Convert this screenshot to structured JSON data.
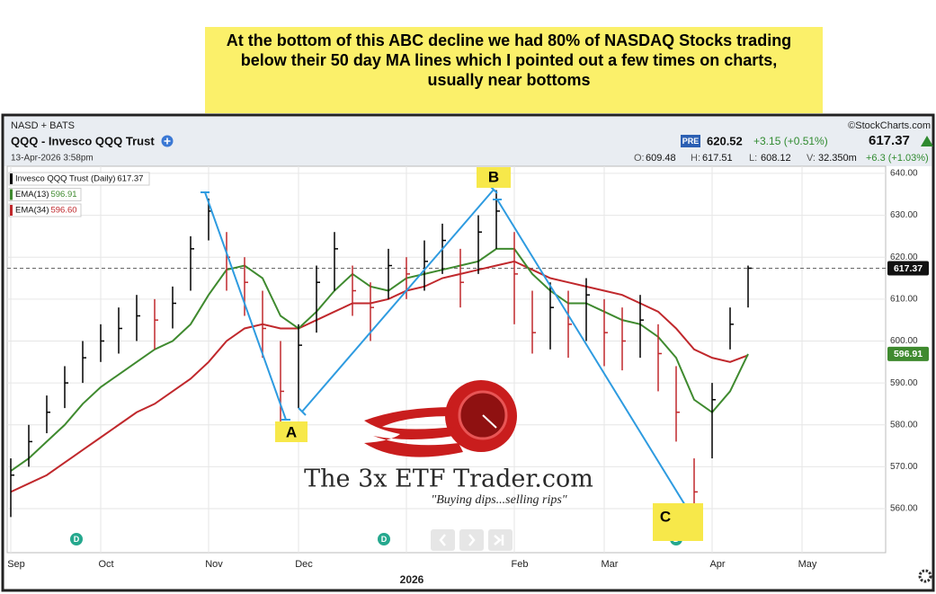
{
  "note": [
    "At the bottom of this ABC decline we had 80% of NASDAQ Stocks trading",
    "below their 50 day MA lines which I pointed out a few times on charts,",
    "usually near bottoms"
  ],
  "header": {
    "exchange": "NASD + BATS",
    "copyright": "©StockCharts.com",
    "symbol": "QQQ - Invesco QQQ Trust",
    "timestamp": "13-Apr-2026 3:58pm",
    "pre_badge": "PRE",
    "pre_price": "620.52",
    "pre_change": "+3.15 (+0.51%)",
    "last_price": "617.37",
    "ohlcv": [
      {
        "label": "O:",
        "value": "609.48"
      },
      {
        "label": "H:",
        "value": "617.51"
      },
      {
        "label": "L:",
        "value": "608.12"
      },
      {
        "label": "V:",
        "value": "32.350m"
      }
    ],
    "day_change": "+6.3 (+1.03%)"
  },
  "chart_data": {
    "type": "ohlc",
    "categories": [
      "Sep",
      null,
      null,
      null,
      null,
      "Oct",
      null,
      null,
      null,
      null,
      null,
      "Nov",
      null,
      null,
      null,
      null,
      "Dec",
      null,
      null,
      null,
      null,
      null,
      "2026",
      null,
      null,
      null,
      null,
      null,
      "Feb",
      null,
      null,
      null,
      null,
      "Mar",
      null,
      null,
      null,
      null,
      null,
      "Apr",
      null,
      null,
      null,
      null,
      "May"
    ],
    "ylim": [
      549.5,
      641.7
    ],
    "yticks": [
      {
        "value": 560,
        "label": "560.00"
      },
      {
        "value": 570,
        "label": "570.00"
      },
      {
        "value": 580,
        "label": "580.00"
      },
      {
        "value": 590,
        "label": "590.00"
      },
      {
        "value": 600,
        "label": "600.00"
      },
      {
        "value": 610,
        "label": "610.00"
      },
      {
        "value": 620,
        "label": "620.00"
      },
      {
        "value": 630,
        "label": "630.00"
      },
      {
        "value": 640,
        "label": "640.00"
      }
    ],
    "grid": true,
    "series": [
      {
        "name": "Invesco QQQ Trust (Daily)",
        "color": "#000000",
        "down_color": "#c0282c",
        "last": 617.37,
        "high": [
          572,
          580,
          587,
          594,
          600,
          604,
          608,
          611,
          610,
          613,
          625,
          634,
          626,
          620,
          612,
          600,
          604,
          618,
          626,
          618,
          614,
          622,
          620,
          624,
          628,
          622,
          630,
          636,
          626,
          612,
          614,
          612,
          615,
          610,
          608,
          611,
          604,
          594,
          572,
          590,
          608,
          618,
          null,
          null,
          null
        ],
        "low": [
          558,
          570,
          578,
          584,
          590,
          595,
          597,
          600,
          598,
          603,
          612,
          624,
          612,
          606,
          596,
          580,
          584,
          602,
          612,
          606,
          600,
          610,
          610,
          612,
          616,
          608,
          616,
          622,
          604,
          597,
          598,
          596,
          600,
          594,
          593,
          596,
          588,
          576,
          556,
          572,
          598,
          608,
          null,
          null,
          null
        ],
        "close": [
          568,
          576,
          583,
          590,
          596,
          600,
          603,
          606,
          605,
          609,
          622,
          631,
          620,
          614,
          603,
          588,
          599,
          614,
          622,
          612,
          608,
          618,
          616,
          619,
          624,
          614,
          626,
          631,
          616,
          602,
          608,
          604,
          611,
          602,
          600,
          605,
          597,
          583,
          564,
          586,
          604,
          617.37,
          null,
          null,
          null
        ]
      },
      {
        "name": "EMA(13)",
        "color": "#3f8a2f",
        "last": 596.91,
        "values": [
          569,
          572,
          576,
          580,
          585,
          589,
          592,
          595,
          598,
          600,
          604,
          611,
          617,
          618,
          615,
          606,
          603,
          607,
          612,
          616,
          613,
          612,
          615,
          616,
          617,
          618,
          619,
          622,
          622,
          616,
          612,
          609,
          609,
          607,
          605,
          604,
          601,
          596,
          586,
          583,
          588,
          596.91,
          null,
          null,
          null
        ]
      },
      {
        "name": "EMA(34)",
        "color": "#c0282c",
        "last": {
          "value": 596.6,
          "label": "596.60"
        },
        "values": [
          564,
          566,
          568,
          571,
          574,
          577,
          580,
          583,
          585,
          588,
          591,
          595,
          600,
          603,
          604,
          603,
          603,
          605,
          607,
          609,
          609,
          610,
          612,
          613,
          615,
          616,
          617,
          618,
          619,
          617,
          615,
          614,
          613,
          612,
          611,
          609,
          607,
          603,
          598,
          596,
          595,
          596.6,
          null,
          null,
          null
        ]
      }
    ],
    "wave_labels": [
      "A",
      "B",
      "C"
    ],
    "dividend_markers": [
      "D",
      "D",
      "D"
    ]
  },
  "logo": {
    "title": "The 3x ETF Trader.com",
    "tagline": "\"Buying dips...selling rips\""
  }
}
